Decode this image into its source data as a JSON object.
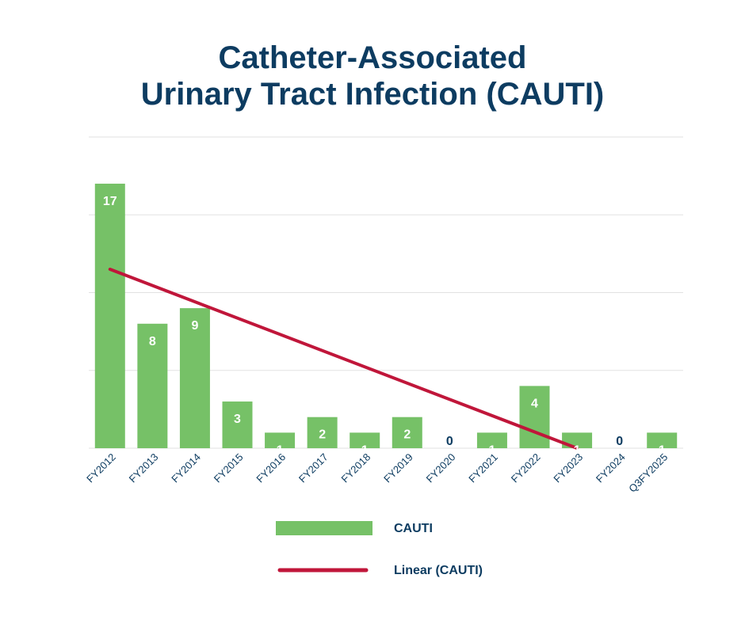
{
  "colors": {
    "title": "#0d3c61",
    "bar": "#76c167",
    "trend": "#c0163a",
    "grid": "#e2e2e2",
    "label_inside": "#ffffff",
    "label_outside": "#0d3c61"
  },
  "chart_data": {
    "type": "bar",
    "title_line1": "Catheter-Associated",
    "title_line2": "Urinary Tract Infection (CAUTI)",
    "categories": [
      "FY2012",
      "FY2013",
      "FY2014",
      "FY2015",
      "FY2016",
      "FY2017",
      "FY2018",
      "FY2019",
      "FY2020",
      "FY2021",
      "FY2022",
      "FY2023",
      "FY2024",
      "Q3FY2025"
    ],
    "series": [
      {
        "name": "CAUTI",
        "values": [
          17,
          8,
          9,
          3,
          1,
          2,
          1,
          2,
          0,
          1,
          4,
          1,
          0,
          1
        ]
      }
    ],
    "trendline": {
      "name": "Linear (CAUTI)",
      "start": [
        1,
        11.5
      ],
      "end": [
        12,
        0
      ]
    },
    "ylim": [
      0,
      20
    ],
    "grid": true,
    "tick_labels_y": false,
    "legend_position": "bottom"
  }
}
